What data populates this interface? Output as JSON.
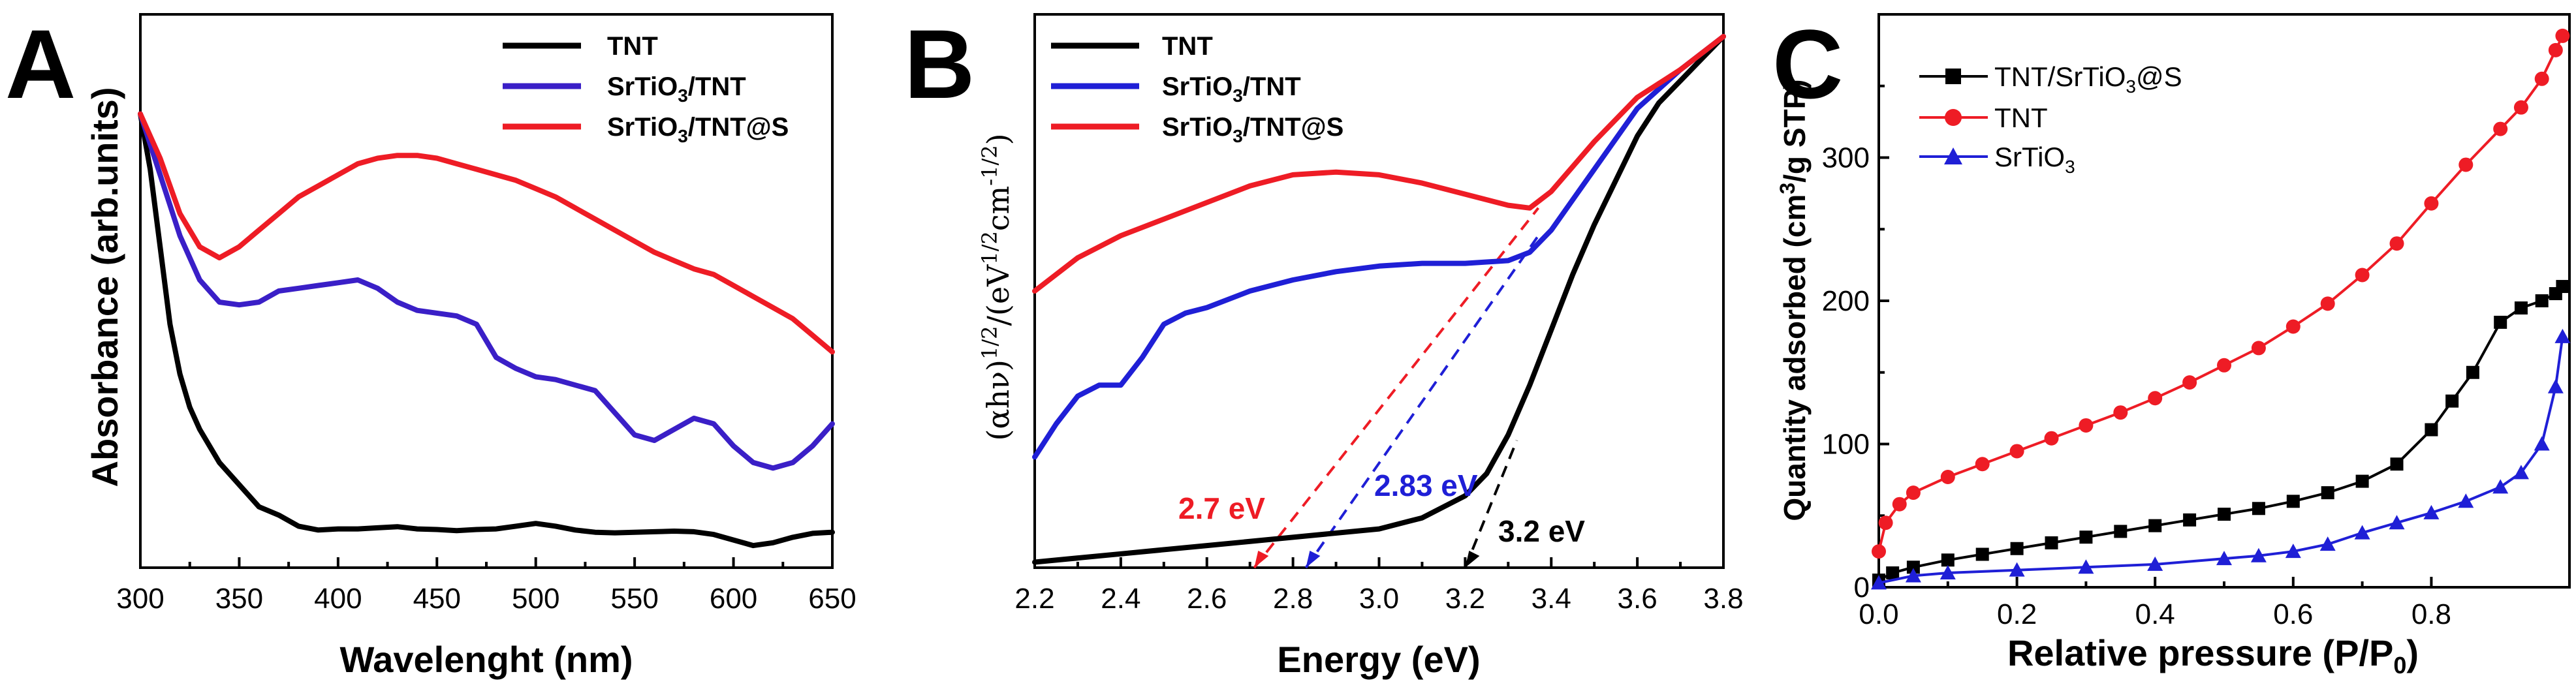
{
  "colors": {
    "black": "#000000",
    "blue": "#1f1fd6",
    "red": "#ee1c25",
    "panelA_blue": "#3a1fc7"
  },
  "chart_data": [
    {
      "panel": "A",
      "type": "line",
      "xlabel": "Wavelenght (nm)",
      "ylabel": "Absorbance (arb.units)",
      "xlim": [
        300,
        650
      ],
      "ylim": [
        0,
        1
      ],
      "xticks": [
        "300",
        "350",
        "400",
        "450",
        "500",
        "550",
        "600",
        "650"
      ],
      "yticks_shown": false,
      "legend_position": "top-right",
      "series": [
        {
          "name": "TNT",
          "color": "#000000",
          "x": [
            300,
            305,
            310,
            315,
            320,
            325,
            330,
            340,
            350,
            360,
            370,
            380,
            390,
            400,
            410,
            420,
            430,
            440,
            450,
            460,
            470,
            480,
            490,
            500,
            510,
            520,
            530,
            540,
            550,
            560,
            570,
            580,
            590,
            600,
            610,
            620,
            630,
            640,
            650
          ],
          "y": [
            0.82,
            0.72,
            0.58,
            0.44,
            0.35,
            0.29,
            0.25,
            0.19,
            0.15,
            0.11,
            0.095,
            0.075,
            0.068,
            0.07,
            0.07,
            0.072,
            0.074,
            0.07,
            0.069,
            0.067,
            0.069,
            0.07,
            0.075,
            0.08,
            0.075,
            0.068,
            0.064,
            0.063,
            0.064,
            0.065,
            0.066,
            0.065,
            0.06,
            0.05,
            0.04,
            0.045,
            0.055,
            0.062,
            0.064
          ]
        },
        {
          "name": "SrTiO3/TNT",
          "color": "#3a1fc7",
          "x": [
            300,
            310,
            320,
            330,
            340,
            350,
            360,
            370,
            380,
            390,
            400,
            410,
            420,
            430,
            440,
            450,
            460,
            470,
            480,
            490,
            500,
            510,
            520,
            530,
            540,
            550,
            560,
            570,
            580,
            590,
            600,
            610,
            620,
            630,
            640,
            650
          ],
          "y": [
            0.82,
            0.71,
            0.6,
            0.52,
            0.48,
            0.475,
            0.48,
            0.5,
            0.505,
            0.51,
            0.515,
            0.52,
            0.505,
            0.48,
            0.465,
            0.46,
            0.455,
            0.44,
            0.38,
            0.36,
            0.345,
            0.34,
            0.33,
            0.32,
            0.28,
            0.24,
            0.23,
            0.25,
            0.27,
            0.26,
            0.22,
            0.19,
            0.18,
            0.19,
            0.22,
            0.26
          ]
        },
        {
          "name": "SrTiO3/TNT@S",
          "color": "#ee1c25",
          "x": [
            300,
            310,
            320,
            330,
            340,
            350,
            360,
            370,
            380,
            390,
            400,
            410,
            420,
            430,
            440,
            450,
            460,
            470,
            480,
            490,
            500,
            510,
            520,
            530,
            540,
            550,
            560,
            570,
            580,
            590,
            600,
            610,
            620,
            630,
            640,
            650
          ],
          "y": [
            0.82,
            0.74,
            0.64,
            0.58,
            0.56,
            0.58,
            0.61,
            0.64,
            0.67,
            0.69,
            0.71,
            0.73,
            0.74,
            0.745,
            0.745,
            0.74,
            0.73,
            0.72,
            0.71,
            0.7,
            0.685,
            0.67,
            0.65,
            0.63,
            0.61,
            0.59,
            0.57,
            0.555,
            0.54,
            0.53,
            0.51,
            0.49,
            0.47,
            0.45,
            0.42,
            0.39
          ]
        }
      ],
      "legend": [
        "TNT",
        "SrTiO3/TNT",
        "SrTiO3/TNT@S"
      ]
    },
    {
      "panel": "B",
      "type": "line",
      "xlabel": "Energy (eV)",
      "ylabel": "(αhν)1/2/(eV1/2cm-1/2)",
      "xlim": [
        2.2,
        3.8
      ],
      "ylim": [
        0,
        1
      ],
      "xticks": [
        "2.2",
        "2.4",
        "2.6",
        "2.8",
        "3.0",
        "3.2",
        "3.4",
        "3.6",
        "3.8"
      ],
      "yticks_shown": false,
      "legend_position": "top-left",
      "series": [
        {
          "name": "TNT",
          "color": "#000000",
          "x": [
            2.2,
            2.4,
            2.6,
            2.8,
            3.0,
            3.1,
            3.2,
            3.25,
            3.3,
            3.35,
            3.4,
            3.45,
            3.5,
            3.55,
            3.6,
            3.65,
            3.7,
            3.75,
            3.8
          ],
          "y": [
            0.01,
            0.025,
            0.04,
            0.055,
            0.07,
            0.09,
            0.13,
            0.17,
            0.24,
            0.33,
            0.43,
            0.53,
            0.62,
            0.7,
            0.78,
            0.84,
            0.88,
            0.92,
            0.96
          ]
        },
        {
          "name": "SrTiO3/TNT",
          "color": "#1f1fd6",
          "x": [
            2.2,
            2.25,
            2.3,
            2.35,
            2.4,
            2.45,
            2.5,
            2.55,
            2.6,
            2.7,
            2.8,
            2.9,
            3.0,
            3.1,
            3.2,
            3.3,
            3.35,
            3.4,
            3.5,
            3.6,
            3.7,
            3.8
          ],
          "y": [
            0.2,
            0.26,
            0.31,
            0.33,
            0.33,
            0.38,
            0.44,
            0.46,
            0.47,
            0.5,
            0.52,
            0.535,
            0.545,
            0.55,
            0.55,
            0.555,
            0.57,
            0.61,
            0.72,
            0.83,
            0.9,
            0.96
          ]
        },
        {
          "name": "SrTiO3/TNT@S",
          "color": "#ee1c25",
          "x": [
            2.2,
            2.3,
            2.4,
            2.5,
            2.6,
            2.7,
            2.8,
            2.9,
            3.0,
            3.1,
            3.2,
            3.3,
            3.35,
            3.4,
            3.5,
            3.6,
            3.7,
            3.8
          ],
          "y": [
            0.5,
            0.56,
            0.6,
            0.63,
            0.66,
            0.69,
            0.71,
            0.715,
            0.71,
            0.695,
            0.675,
            0.655,
            0.65,
            0.68,
            0.77,
            0.85,
            0.9,
            0.96
          ]
        }
      ],
      "tangents": [
        {
          "color": "#ee1c25",
          "x": [
            2.71,
            3.37
          ],
          "y": [
            0.0,
            0.65
          ]
        },
        {
          "color": "#1f1fd6",
          "x": [
            2.83,
            3.37
          ],
          "y": [
            0.0,
            0.6
          ]
        },
        {
          "color": "#000000",
          "x": [
            3.2,
            3.32
          ],
          "y": [
            0.0,
            0.23
          ]
        }
      ],
      "annotations": [
        {
          "text": "2.7 eV",
          "color": "#ee1c25"
        },
        {
          "text": "2.83 eV",
          "color": "#1f1fd6"
        },
        {
          "text": "3.2 eV",
          "color": "#000000"
        }
      ],
      "legend": [
        "TNT",
        "SrTiO3/TNT",
        "SrTiO3/TNT@S"
      ]
    },
    {
      "panel": "C",
      "type": "line",
      "xlabel": "Relative pressure (P/P0)",
      "ylabel": "Quantity adsorbed (cm3/g STP)",
      "xlim": [
        0.0,
        1.0
      ],
      "ylim": [
        0,
        400
      ],
      "xticks": [
        "0.0",
        "0.2",
        "0.4",
        "0.6",
        "0.8"
      ],
      "yticks": [
        "0",
        "100",
        "200",
        "300"
      ],
      "legend_position": "top-left",
      "series": [
        {
          "name": "TNT/SrTiO3@S",
          "color": "#000000",
          "marker": "square",
          "x": [
            0.0,
            0.02,
            0.05,
            0.1,
            0.15,
            0.2,
            0.25,
            0.3,
            0.35,
            0.4,
            0.45,
            0.5,
            0.55,
            0.6,
            0.65,
            0.7,
            0.75,
            0.8,
            0.83,
            0.86,
            0.9,
            0.93,
            0.96,
            0.98,
            0.99
          ],
          "y": [
            5,
            10,
            14,
            19,
            23,
            27,
            31,
            35,
            39,
            43,
            47,
            51,
            55,
            60,
            66,
            74,
            86,
            110,
            130,
            150,
            185,
            195,
            200,
            205,
            210
          ]
        },
        {
          "name": "TNT",
          "color": "#ee1c25",
          "marker": "circle",
          "x": [
            0.0,
            0.01,
            0.03,
            0.05,
            0.1,
            0.15,
            0.2,
            0.25,
            0.3,
            0.35,
            0.4,
            0.45,
            0.5,
            0.55,
            0.6,
            0.65,
            0.7,
            0.75,
            0.8,
            0.85,
            0.9,
            0.93,
            0.96,
            0.98,
            0.99
          ],
          "y": [
            25,
            45,
            58,
            66,
            77,
            86,
            95,
            104,
            113,
            122,
            132,
            143,
            155,
            167,
            182,
            198,
            218,
            240,
            268,
            295,
            320,
            335,
            355,
            375,
            385
          ]
        },
        {
          "name": "SrTiO3",
          "color": "#1f1fd6",
          "marker": "triangle",
          "x": [
            0.0,
            0.05,
            0.1,
            0.2,
            0.3,
            0.4,
            0.5,
            0.55,
            0.6,
            0.65,
            0.7,
            0.75,
            0.8,
            0.85,
            0.9,
            0.93,
            0.96,
            0.98,
            0.99
          ],
          "y": [
            3,
            8,
            10,
            12,
            14,
            16,
            20,
            22,
            25,
            30,
            38,
            45,
            52,
            60,
            70,
            80,
            100,
            140,
            175
          ]
        }
      ],
      "legend": [
        "TNT/SrTiO3@S",
        "TNT",
        "SrTiO3"
      ]
    }
  ],
  "panels": {
    "a": "A",
    "b": "B",
    "c": "C"
  },
  "legend_text": {
    "a": [
      "TNT",
      "SrTiO",
      "3",
      "/TNT",
      "SrTiO",
      "3",
      "/TNT@S"
    ],
    "b": [
      "TNT",
      "SrTiO",
      "3",
      "/TNT",
      "SrTiO",
      "3",
      "/TNT@S"
    ],
    "c": [
      "TNT/SrTiO",
      "3",
      "@S",
      "TNT",
      "SrTiO",
      "3"
    ]
  },
  "axis_titles": {
    "a_x": "Wavelenght (nm)",
    "a_y": "Absorbance (arb.units)",
    "b_x": "Energy (eV)",
    "b_y_parts": [
      "(αhν)",
      "1/2",
      "/(eV",
      "1/2",
      "cm",
      "-1/2",
      ")"
    ],
    "c_x_parts": [
      "Relative pressure (P/P",
      "0",
      ")"
    ],
    "c_y_parts": [
      "Quantity adsorbed (cm",
      "3",
      "/g STP)"
    ]
  }
}
